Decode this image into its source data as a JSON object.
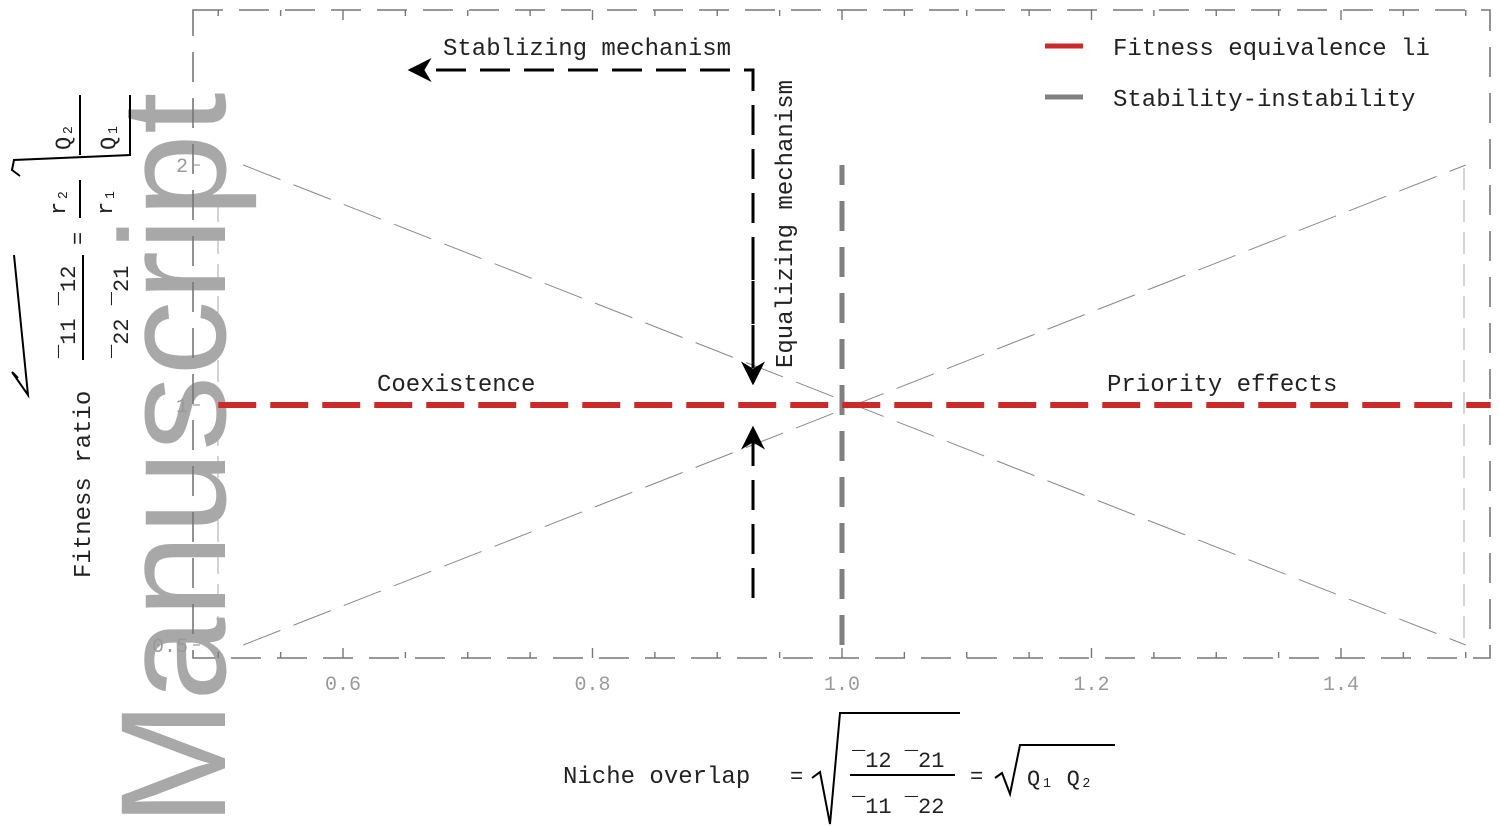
{
  "chart_data": {
    "type": "line",
    "xlabel": "Niche overlap",
    "ylabel": "Fitness ratio",
    "xlim": [
      0.5,
      1.52
    ],
    "ylim": [
      0.5,
      2.0
    ],
    "y_scale": "log",
    "x_ticks": [
      "0.6",
      "0.8",
      "1.0",
      "1.2",
      "1.4"
    ],
    "y_ticks": [
      "0.5",
      "1",
      "2"
    ],
    "x_tick_values": [
      0.6,
      0.8,
      1.0,
      1.2,
      1.4
    ],
    "y_tick_values": [
      0.5,
      1,
      2
    ],
    "grid": false,
    "legend_position": "top-right",
    "series": [
      {
        "name": "Fitness equivalence li",
        "color": "#cc2a2a",
        "style": "dashed",
        "x": [
          0.5,
          1.52
        ],
        "y": [
          1,
          1
        ]
      },
      {
        "name": "Stability-instability",
        "color": "#808080",
        "style": "dashed",
        "x": [
          1.0,
          1.0
        ],
        "y": [
          0.5,
          2.0
        ]
      },
      {
        "color": "#888888",
        "style": "thin-dashed",
        "x": [
          0.52,
          1.5
        ],
        "y": [
          2.0,
          0.5
        ]
      },
      {
        "color": "#888888",
        "style": "thin-dashed",
        "x": [
          0.52,
          1.5
        ],
        "y": [
          0.5,
          2.0
        ]
      }
    ],
    "annotations": {
      "stabilizing": "Stablizing mechanism",
      "equalizing": "Equalizing mechanism",
      "coexistence": "Coexistence",
      "priority": "Priority effects"
    },
    "formulas": {
      "y_equals": "=",
      "y_fraction_top": "r₂",
      "y_fraction_bottom": "r₁",
      "y_sqrt_top": "Q₂",
      "y_sqrt_bottom": "Q₁",
      "y_left_top": "‾11 ‾12",
      "y_left_bottom": "‾22 ‾21",
      "x_equals_1": "=",
      "x_equals_2": "=",
      "x_frac_top": "‾12 ‾21",
      "x_frac_bottom": "‾11 ‾22",
      "x_product": "Q₁ Q₂"
    }
  },
  "watermark": "Manuscript"
}
